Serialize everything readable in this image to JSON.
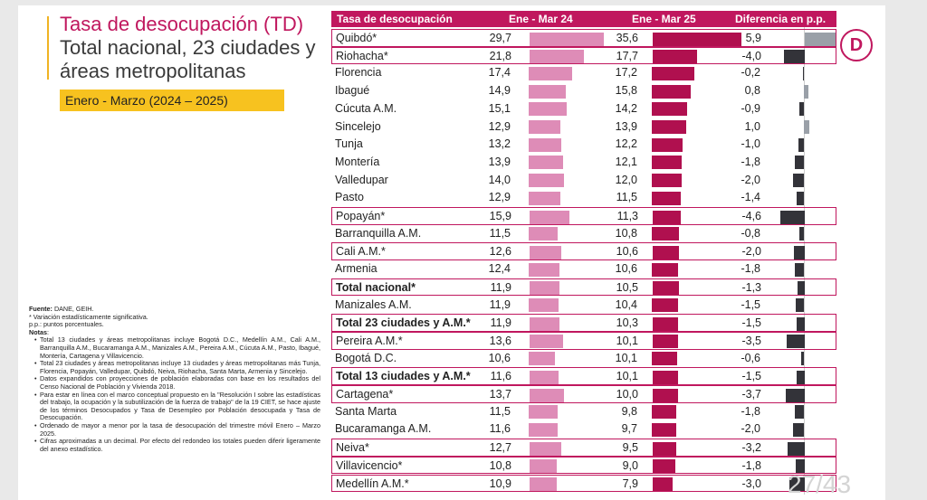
{
  "title": {
    "line1": "Tasa de desocupación (TD)",
    "line2": "Total nacional, 23 ciudades y",
    "line3": "áreas metropolitanas"
  },
  "period": "Enero - Marzo (2024 – 2025)",
  "header": {
    "col1": "Tasa de desocupación",
    "col2": "Ene - Mar 24",
    "col3": "Ene - Mar 25",
    "col4": "Diferencia en p.p."
  },
  "notes": {
    "source_label": "Fuente:",
    "source": " DANE, GEIH.",
    "sig": "* Variación estadísticamente significativa.",
    "pp": "p.p.: puntos porcentuales.",
    "notes_label": "Notas",
    "items": [
      "Total 13 ciudades y áreas metropolitanas incluye Bogotá D.C., Medellín A.M., Cali A.M., Barranquilla A.M., Bucaramanga A.M., Manizales A.M., Pereira A.M., Cúcuta A.M., Pasto, Ibagué, Montería, Cartagena y Villavicencio.",
      "Total 23 ciudades y áreas metropolitanas incluye 13 ciudades y áreas metropolitanas más Tunja, Florencia, Popayán, Valledupar, Quibdó, Neiva, Riohacha, Santa Marta, Armenia y Sincelejo.",
      "Datos expandidos con proyecciones de población elaboradas con base en los resultados del Censo Nacional de Población y Vivienda 2018.",
      "Para estar en línea con el marco conceptual propuesto en la \"Resolución I sobre las estadísticas del trabajo, la ocupación y la subutilización de la fuerza de trabajo\" de la 19 CIET, se hace ajuste de los términos Desocupados y Tasa de Desempleo por Población desocupada y Tasa de Desocupación.",
      "Ordenado de mayor a menor por la tasa de desocupación del trimestre móvil Enero – Marzo 2025.",
      "Cifras aproximadas a un decimal. Por efecto del redondeo los totales pueden diferir ligeramente del anexo estadístico."
    ]
  },
  "logo_letter": "D",
  "page_number": "27/43",
  "colors": {
    "brand": "#c0175e",
    "bar_2024": "#de8cb7",
    "bar_2025": "#b0104f",
    "diff_negative": "#333339",
    "diff_positive": "#9aa0a8",
    "period_highlight": "#f7c21f"
  },
  "chart_data": {
    "type": "table",
    "title": "Tasa de desocupación (TD) Total nacional, 23 ciudades y áreas metropolitanas",
    "columns": [
      "Tasa de desocupación",
      "Ene - Mar 24",
      "Ene - Mar 25",
      "Diferencia en p.p."
    ],
    "rows": [
      {
        "name": "Quibdó*",
        "v2024": "29,7",
        "v2025": "35,6",
        "diff": "5,9",
        "sig": true,
        "bold": false
      },
      {
        "name": "Riohacha*",
        "v2024": "21,8",
        "v2025": "17,7",
        "diff": "-4,0",
        "sig": true,
        "bold": false
      },
      {
        "name": "Florencia",
        "v2024": "17,4",
        "v2025": "17,2",
        "diff": "-0,2",
        "sig": false,
        "bold": false
      },
      {
        "name": "Ibagué",
        "v2024": "14,9",
        "v2025": "15,8",
        "diff": "0,8",
        "sig": false,
        "bold": false
      },
      {
        "name": "Cúcuta A.M.",
        "v2024": "15,1",
        "v2025": "14,2",
        "diff": "-0,9",
        "sig": false,
        "bold": false
      },
      {
        "name": "Sincelejo",
        "v2024": "12,9",
        "v2025": "13,9",
        "diff": "1,0",
        "sig": false,
        "bold": false
      },
      {
        "name": "Tunja",
        "v2024": "13,2",
        "v2025": "12,2",
        "diff": "-1,0",
        "sig": false,
        "bold": false
      },
      {
        "name": "Montería",
        "v2024": "13,9",
        "v2025": "12,1",
        "diff": "-1,8",
        "sig": false,
        "bold": false
      },
      {
        "name": "Valledupar",
        "v2024": "14,0",
        "v2025": "12,0",
        "diff": "-2,0",
        "sig": false,
        "bold": false
      },
      {
        "name": "Pasto",
        "v2024": "12,9",
        "v2025": "11,5",
        "diff": "-1,4",
        "sig": false,
        "bold": false
      },
      {
        "name": "Popayán*",
        "v2024": "15,9",
        "v2025": "11,3",
        "diff": "-4,6",
        "sig": true,
        "bold": false
      },
      {
        "name": "Barranquilla A.M.",
        "v2024": "11,5",
        "v2025": "10,8",
        "diff": "-0,8",
        "sig": false,
        "bold": false
      },
      {
        "name": "Cali A.M.*",
        "v2024": "12,6",
        "v2025": "10,6",
        "diff": "-2,0",
        "sig": true,
        "bold": false
      },
      {
        "name": "Armenia",
        "v2024": "12,4",
        "v2025": "10,6",
        "diff": "-1,8",
        "sig": false,
        "bold": false
      },
      {
        "name": "Total nacional*",
        "v2024": "11,9",
        "v2025": "10,5",
        "diff": "-1,3",
        "sig": true,
        "bold": true
      },
      {
        "name": "Manizales A.M.",
        "v2024": "11,9",
        "v2025": "10,4",
        "diff": "-1,5",
        "sig": false,
        "bold": false
      },
      {
        "name": "Total 23 ciudades y A.M.*",
        "v2024": "11,9",
        "v2025": "10,3",
        "diff": "-1,5",
        "sig": true,
        "bold": true
      },
      {
        "name": "Pereira A.M.*",
        "v2024": "13,6",
        "v2025": "10,1",
        "diff": "-3,5",
        "sig": true,
        "bold": false
      },
      {
        "name": "Bogotá D.C.",
        "v2024": "10,6",
        "v2025": "10,1",
        "diff": "-0,6",
        "sig": false,
        "bold": false
      },
      {
        "name": "Total 13 ciudades y A.M.*",
        "v2024": "11,6",
        "v2025": "10,1",
        "diff": "-1,5",
        "sig": true,
        "bold": true
      },
      {
        "name": "Cartagena*",
        "v2024": "13,7",
        "v2025": "10,0",
        "diff": "-3,7",
        "sig": true,
        "bold": false
      },
      {
        "name": "Santa Marta",
        "v2024": "11,5",
        "v2025": "9,8",
        "diff": "-1,8",
        "sig": false,
        "bold": false
      },
      {
        "name": "Bucaramanga A.M.",
        "v2024": "11,6",
        "v2025": "9,7",
        "diff": "-2,0",
        "sig": false,
        "bold": false
      },
      {
        "name": "Neiva*",
        "v2024": "12,7",
        "v2025": "9,5",
        "diff": "-3,2",
        "sig": true,
        "bold": false
      },
      {
        "name": "Villavicencio*",
        "v2024": "10,8",
        "v2025": "9,0",
        "diff": "-1,8",
        "sig": true,
        "bold": false
      },
      {
        "name": "Medellín A.M.*",
        "v2024": "10,9",
        "v2025": "7,9",
        "diff": "-3,0",
        "sig": true,
        "bold": false
      }
    ]
  }
}
